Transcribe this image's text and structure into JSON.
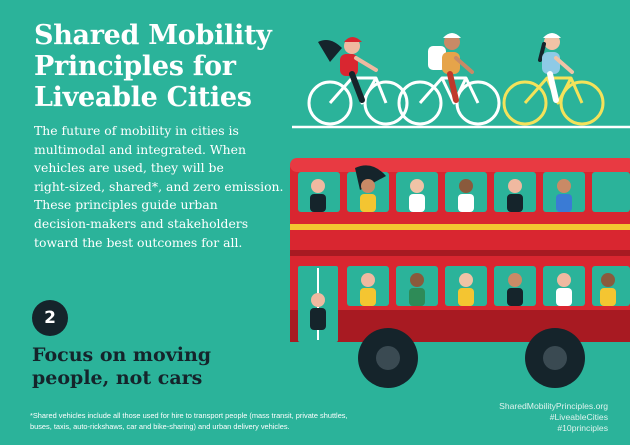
{
  "title_lines": [
    "Shared Mobility",
    "Principles for",
    "Liveable Cities"
  ],
  "intro_lines": [
    "The future of mobility in cities is",
    "multimodal and integrated. When",
    "vehicles are used, they will be",
    "right-sized, shared*, and zero emission.",
    "These principles guide urban",
    "decision-makers and stakeholders",
    "toward the best outcomes for all."
  ],
  "principle": {
    "number": "2",
    "lines": [
      "Focus on moving",
      "people, not cars"
    ]
  },
  "footnote_lines": [
    "*Shared vehicles include all those used for hire to transport people (mass transit, private shuttles,",
    "buses, taxis, auto-rickshaws, car and bike-sharing) and urban delivery vehicles."
  ],
  "links": [
    "SharedMobilityPrinciples.org",
    "#LiveableCities",
    "#10principles"
  ],
  "colors": {
    "background": "#2bb39a",
    "bus_red": "#d92630",
    "bus_dark_red": "#a81a22",
    "navy": "#15242b",
    "yellow": "#f4c531"
  },
  "illustration": {
    "icons": [
      "cyclist-icon",
      "double-decker-bus-icon",
      "passenger-icon"
    ]
  }
}
